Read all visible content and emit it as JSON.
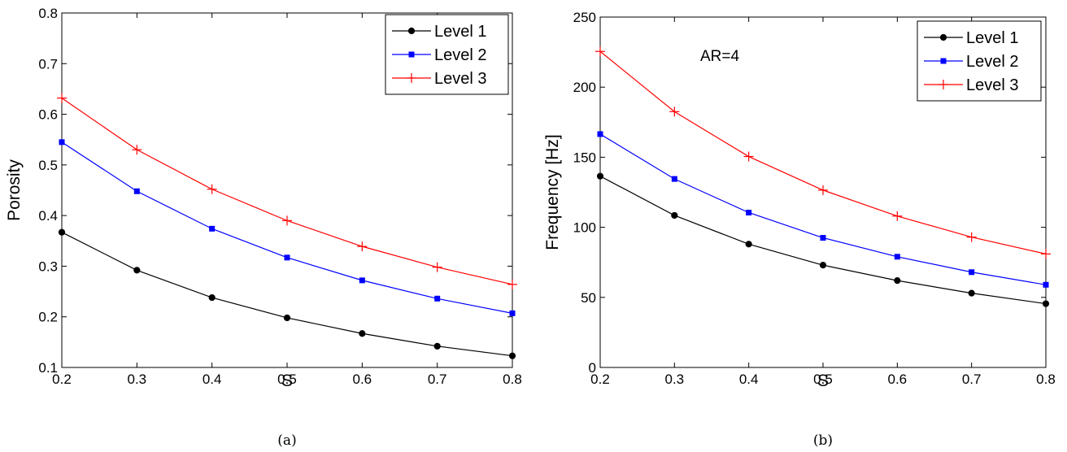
{
  "chart_data": [
    {
      "type": "line",
      "caption": "(a)",
      "xlabel": "S",
      "ylabel": "Porosity",
      "xlim": [
        0.2,
        0.8
      ],
      "ylim": [
        0.1,
        0.8
      ],
      "xticks": [
        "0.2",
        "0.3",
        "0.4",
        "0.5",
        "0.6",
        "0.7",
        "0.8"
      ],
      "yticks": [
        "0.1",
        "0.2",
        "0.3",
        "0.4",
        "0.5",
        "0.6",
        "0.7",
        "0.8"
      ],
      "legend_position": "top-right",
      "grid": false,
      "x": [
        0.2,
        0.3,
        0.4,
        0.5,
        0.6,
        0.7,
        0.8
      ],
      "series": [
        {
          "name": "Level 1",
          "color": "#000000",
          "marker": "circle",
          "values": [
            0.367,
            0.292,
            0.238,
            0.198,
            0.167,
            0.142,
            0.123
          ]
        },
        {
          "name": "Level 2",
          "color": "#0000ff",
          "marker": "square",
          "values": [
            0.545,
            0.448,
            0.374,
            0.317,
            0.272,
            0.236,
            0.207
          ]
        },
        {
          "name": "Level 3",
          "color": "#ff0000",
          "marker": "plus",
          "values": [
            0.632,
            0.53,
            0.452,
            0.39,
            0.339,
            0.298,
            0.264
          ]
        }
      ]
    },
    {
      "type": "line",
      "caption": "(b)",
      "xlabel": "S",
      "ylabel": "Frequency [Hz]",
      "annotation": "AR=4",
      "xlim": [
        0.2,
        0.8
      ],
      "ylim": [
        0,
        250
      ],
      "xticks": [
        "0.2",
        "0.3",
        "0.4",
        "0.5",
        "0.6",
        "0.7",
        "0.8"
      ],
      "yticks": [
        "0",
        "50",
        "100",
        "150",
        "200",
        "250"
      ],
      "legend_position": "top-right",
      "grid": false,
      "x": [
        0.2,
        0.3,
        0.4,
        0.5,
        0.6,
        0.7,
        0.8
      ],
      "series": [
        {
          "name": "Level 1",
          "color": "#000000",
          "marker": "circle",
          "values": [
            136.5,
            108.5,
            88.0,
            73.0,
            62.0,
            53.0,
            45.5
          ]
        },
        {
          "name": "Level 2",
          "color": "#0000ff",
          "marker": "square",
          "values": [
            166.5,
            134.5,
            110.5,
            92.5,
            79.0,
            68.0,
            59.0
          ]
        },
        {
          "name": "Level 3",
          "color": "#ff0000",
          "marker": "plus",
          "values": [
            225.5,
            182.5,
            150.5,
            126.5,
            108.0,
            93.0,
            81.0
          ]
        }
      ]
    }
  ]
}
